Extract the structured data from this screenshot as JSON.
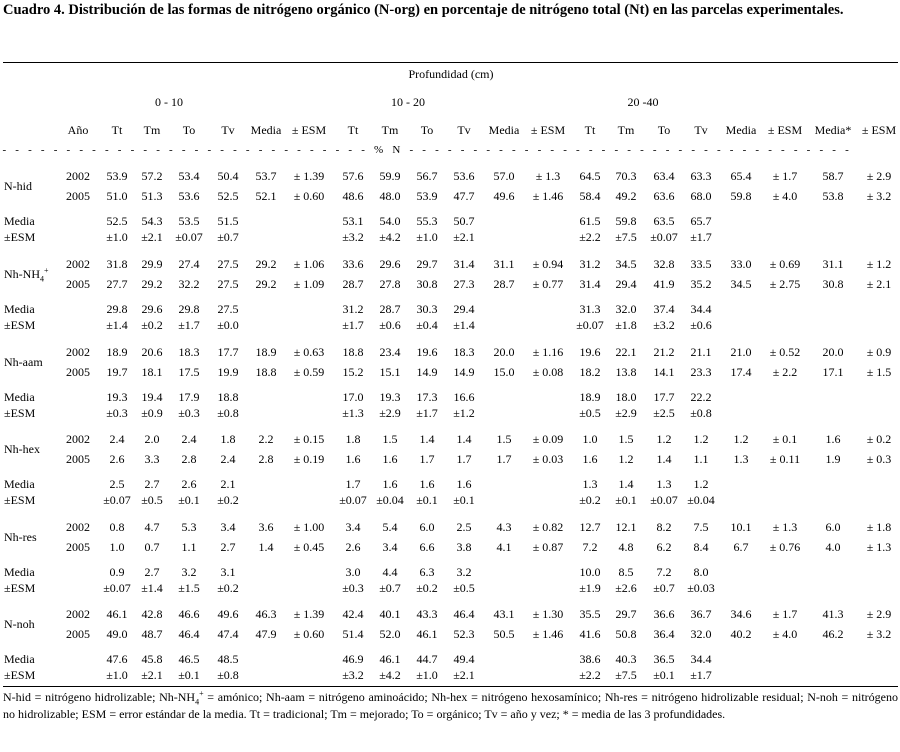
{
  "title": {
    "bold": "Cuadro 4. Distribución de las formas de nitrógeno orgánico (N-org) en porcentaje de nitrógeno total (Nt) en las parcelas experimentales."
  },
  "header": {
    "super": "Profundidad (cm)",
    "groups": [
      "0 - 10",
      "10 - 20",
      "20 -40"
    ],
    "year": "Año",
    "cols": [
      "Tt",
      "Tm",
      "To",
      "Tv",
      "Media",
      "± ESM",
      "Tt",
      "Tm",
      "To",
      "Tv",
      "Media",
      "± ESM",
      "Tt",
      "Tm",
      "To",
      "Tv",
      "Media",
      "± ESM",
      "Media*",
      "± ESM"
    ],
    "unit_line": "- - - - - - - - - - - - - - - - - - - - - - - - - - - - - - - - % N - - - - - - - - - - - - - - - - - - - - - - - - - - - - - - - - - - -"
  },
  "blocks": [
    {
      "label": "N-hid",
      "rows": [
        {
          "year": "2002",
          "v": [
            "53.9",
            "57.2",
            "53.4",
            "50.4",
            "53.7",
            "± 1.39",
            "57.6",
            "59.9",
            "56.7",
            "53.6",
            "57.0",
            "± 1.3",
            "64.5",
            "70.3",
            "63.4",
            "63.3",
            "65.4",
            "± 1.7",
            "58.7",
            "± 2.9"
          ]
        },
        {
          "year": "2005",
          "v": [
            "51.0",
            "51.3",
            "53.6",
            "52.5",
            "52.1",
            "± 0.60",
            "48.6",
            "48.0",
            "53.9",
            "47.7",
            "49.6",
            "± 1.46",
            "58.4",
            "49.2",
            "63.6",
            "68.0",
            "59.8",
            "± 4.0",
            "53.8",
            "± 3.2"
          ]
        }
      ],
      "media": [
        "52.5",
        "54.3",
        "53.5",
        "51.5",
        "53.1",
        "54.0",
        "55.3",
        "50.7",
        "61.5",
        "59.8",
        "63.5",
        "65.7"
      ],
      "esm": [
        "±1.0",
        "±2.1",
        "±0.07",
        "±0.7",
        "±3.2",
        "±4.2",
        "±1.0",
        "±2.1",
        "±2.2",
        "±7.5",
        "±0.07",
        "±1.7"
      ]
    },
    {
      "label": "Nh-NH",
      "label_sub": "4",
      "label_sup": "+",
      "rows": [
        {
          "year": "2002",
          "v": [
            "31.8",
            "29.9",
            "27.4",
            "27.5",
            "29.2",
            "± 1.06",
            "33.6",
            "29.6",
            "29.7",
            "31.4",
            "31.1",
            "± 0.94",
            "31.2",
            "34.5",
            "32.8",
            "33.5",
            "33.0",
            "± 0.69",
            "31.1",
            "± 1.2"
          ]
        },
        {
          "year": "2005",
          "v": [
            "27.7",
            "29.2",
            "32.2",
            "27.5",
            "29.2",
            "± 1.09",
            "28.7",
            "27.8",
            "30.8",
            "27.3",
            "28.7",
            "± 0.77",
            "31.4",
            "29.4",
            "41.9",
            "35.2",
            "34.5",
            "± 2.75",
            "30.8",
            "± 2.1"
          ]
        }
      ],
      "media": [
        "29.8",
        "29.6",
        "29.8",
        "27.5",
        "31.2",
        "28.7",
        "30.3",
        "29.4",
        "31.3",
        "32.0",
        "37.4",
        "34.4"
      ],
      "esm": [
        "±1.4",
        "±0.2",
        "±1.7",
        "±0.0",
        "±1.7",
        "±0.6",
        "±0.4",
        "±1.4",
        "±0.07",
        "±1.8",
        "±3.2",
        "±0.6"
      ]
    },
    {
      "label": "Nh-aam",
      "rows": [
        {
          "year": "2002",
          "v": [
            "18.9",
            "20.6",
            "18.3",
            "17.7",
            "18.9",
            "± 0.63",
            "18.8",
            "23.4",
            "19.6",
            "18.3",
            "20.0",
            "± 1.16",
            "19.6",
            "22.1",
            "21.2",
            "21.1",
            "21.0",
            "± 0.52",
            "20.0",
            "± 0.9"
          ]
        },
        {
          "year": "2005",
          "v": [
            "19.7",
            "18.1",
            "17.5",
            "19.9",
            "18.8",
            "± 0.59",
            "15.2",
            "15.1",
            "14.9",
            "14.9",
            "15.0",
            "± 0.08",
            "18.2",
            "13.8",
            "14.1",
            "23.3",
            "17.4",
            "± 2.2",
            "17.1",
            "± 1.5"
          ]
        }
      ],
      "media": [
        "19.3",
        "19.4",
        "17.9",
        "18.8",
        "17.0",
        "19.3",
        "17.3",
        "16.6",
        "18.9",
        "18.0",
        "17.7",
        "22.2"
      ],
      "esm": [
        "±0.3",
        "±0.9",
        "±0.3",
        "±0.8",
        "±1.3",
        "±2.9",
        "±1.7",
        "±1.2",
        "±0.5",
        "±2.9",
        "±2.5",
        "±0.8"
      ]
    },
    {
      "label": "Nh-hex",
      "rows": [
        {
          "year": "2002",
          "v": [
            "2.4",
            "2.0",
            "2.4",
            "1.8",
            "2.2",
            "± 0.15",
            "1.8",
            "1.5",
            "1.4",
            "1.4",
            "1.5",
            "± 0.09",
            "1.0",
            "1.5",
            "1.2",
            "1.2",
            "1.2",
            "± 0.1",
            "1.6",
            "± 0.2"
          ]
        },
        {
          "year": "2005",
          "v": [
            "2.6",
            "3.3",
            "2.8",
            "2.4",
            "2.8",
            "± 0.19",
            "1.6",
            "1.6",
            "1.7",
            "1.7",
            "1.7",
            "± 0.03",
            "1.6",
            "1.2",
            "1.4",
            "1.1",
            "1.3",
            "± 0.11",
            "1.9",
            "± 0.3"
          ]
        }
      ],
      "media": [
        "2.5",
        "2.7",
        "2.6",
        "2.1",
        "1.7",
        "1.6",
        "1.6",
        "1.6",
        "1.3",
        "1.4",
        "1.3",
        "1.2"
      ],
      "esm": [
        "±0.07",
        "±0.5",
        "±0.1",
        "±0.2",
        "±0.07",
        "±0.04",
        "±0.1",
        "±0.1",
        "±0.2",
        "±0.1",
        "±0.07",
        "±0.04"
      ]
    },
    {
      "label": "Nh-res",
      "rows": [
        {
          "year": "2002",
          "v": [
            "0.8",
            "4.7",
            "5.3",
            "3.4",
            "3.6",
            "± 1.00",
            "3.4",
            "5.4",
            "6.0",
            "2.5",
            "4.3",
            "± 0.82",
            "12.7",
            "12.1",
            "8.2",
            "7.5",
            "10.1",
            "± 1.3",
            "6.0",
            "± 1.8"
          ]
        },
        {
          "year": "2005",
          "v": [
            "1.0",
            "0.7",
            "1.1",
            "2.7",
            "1.4",
            "± 0.45",
            "2.6",
            "3.4",
            "6.6",
            "3.8",
            "4.1",
            "± 0.87",
            "7.2",
            "4.8",
            "6.2",
            "8.4",
            "6.7",
            "± 0.76",
            "4.0",
            "± 1.3"
          ]
        }
      ],
      "media": [
        "0.9",
        "2.7",
        "3.2",
        "3.1",
        "3.0",
        "4.4",
        "6.3",
        "3.2",
        "10.0",
        "8.5",
        "7.2",
        "8.0"
      ],
      "esm": [
        "±0.07",
        "±1.4",
        "±1.5",
        "±0.2",
        "±0.3",
        "±0.7",
        "±0.2",
        "±0.5",
        "±1.9",
        "±2.6",
        "±0.7",
        "±0.03"
      ]
    },
    {
      "label": "N-noh",
      "rows": [
        {
          "year": "2002",
          "v": [
            "46.1",
            "42.8",
            "46.6",
            "49.6",
            "46.3",
            "± 1.39",
            "42.4",
            "40.1",
            "43.3",
            "46.4",
            "43.1",
            "± 1.30",
            "35.5",
            "29.7",
            "36.6",
            "36.7",
            "34.6",
            "± 1.7",
            "41.3",
            "± 2.9"
          ]
        },
        {
          "year": "2005",
          "v": [
            "49.0",
            "48.7",
            "46.4",
            "47.4",
            "47.9",
            "± 0.60",
            "51.4",
            "52.0",
            "46.1",
            "52.3",
            "50.5",
            "± 1.46",
            "41.6",
            "50.8",
            "36.4",
            "32.0",
            "40.2",
            "± 4.0",
            "46.2",
            "± 3.2"
          ]
        }
      ],
      "media": [
        "47.6",
        "45.8",
        "46.5",
        "48.5",
        "46.9",
        "46.1",
        "44.7",
        "49.4",
        "38.6",
        "40.3",
        "36.5",
        "34.4"
      ],
      "esm": [
        "±1.0",
        "±2.1",
        "±0.1",
        "±0.8",
        "±3.2",
        "±4.2",
        "±1.0",
        "±2.1",
        "±2.2",
        "±7.5",
        "±0.1",
        "±1.7"
      ]
    }
  ],
  "media_label": "Media",
  "esm_label": "±ESM",
  "footnote": {
    "part1": "N-hid = nitrógeno hidrolizable; Nh-NH",
    "sub": "4",
    "sup": "+",
    "part2": " = amónico; Nh-aam = nitrógeno aminoácido; Nh-hex = nitrógeno hexosamínico; Nh-res = nitrógeno hidrolizable residual; N-noh = nitrógeno no hidrolizable; ESM = error estándar de la media. Tt = tradicional; Tm = mejorado; To = orgánico; Tv = año y vez; * = media de las 3 profundidades."
  }
}
